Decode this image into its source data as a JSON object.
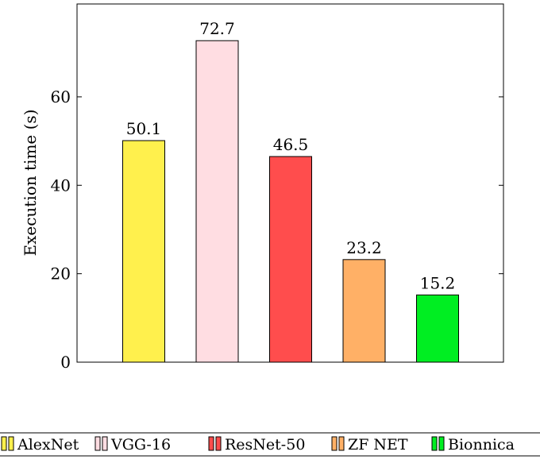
{
  "chart_data": {
    "type": "bar",
    "categories": [
      "AlexNet",
      "VGG-16",
      "ResNet-50",
      "ZF NET",
      "Bionnica"
    ],
    "values": [
      50.1,
      72.7,
      46.5,
      23.2,
      15.2
    ],
    "data_labels": [
      "50.1",
      "72.7",
      "46.5",
      "23.2",
      "15.2"
    ],
    "colors": [
      "#fff04d",
      "#ffdde2",
      "#ff4d4d",
      "#ffb066",
      "#00ee22"
    ],
    "title": "",
    "xlabel": "",
    "ylabel": "Execution time (s)",
    "ylim": [
      0,
      81
    ],
    "yticks": [
      0,
      20,
      40,
      60
    ],
    "grid": false,
    "legend": {
      "placement": "bottom",
      "entries": [
        "AlexNet",
        "VGG-16",
        "ResNet-50",
        "ZF NET",
        "Bionnica"
      ]
    }
  }
}
